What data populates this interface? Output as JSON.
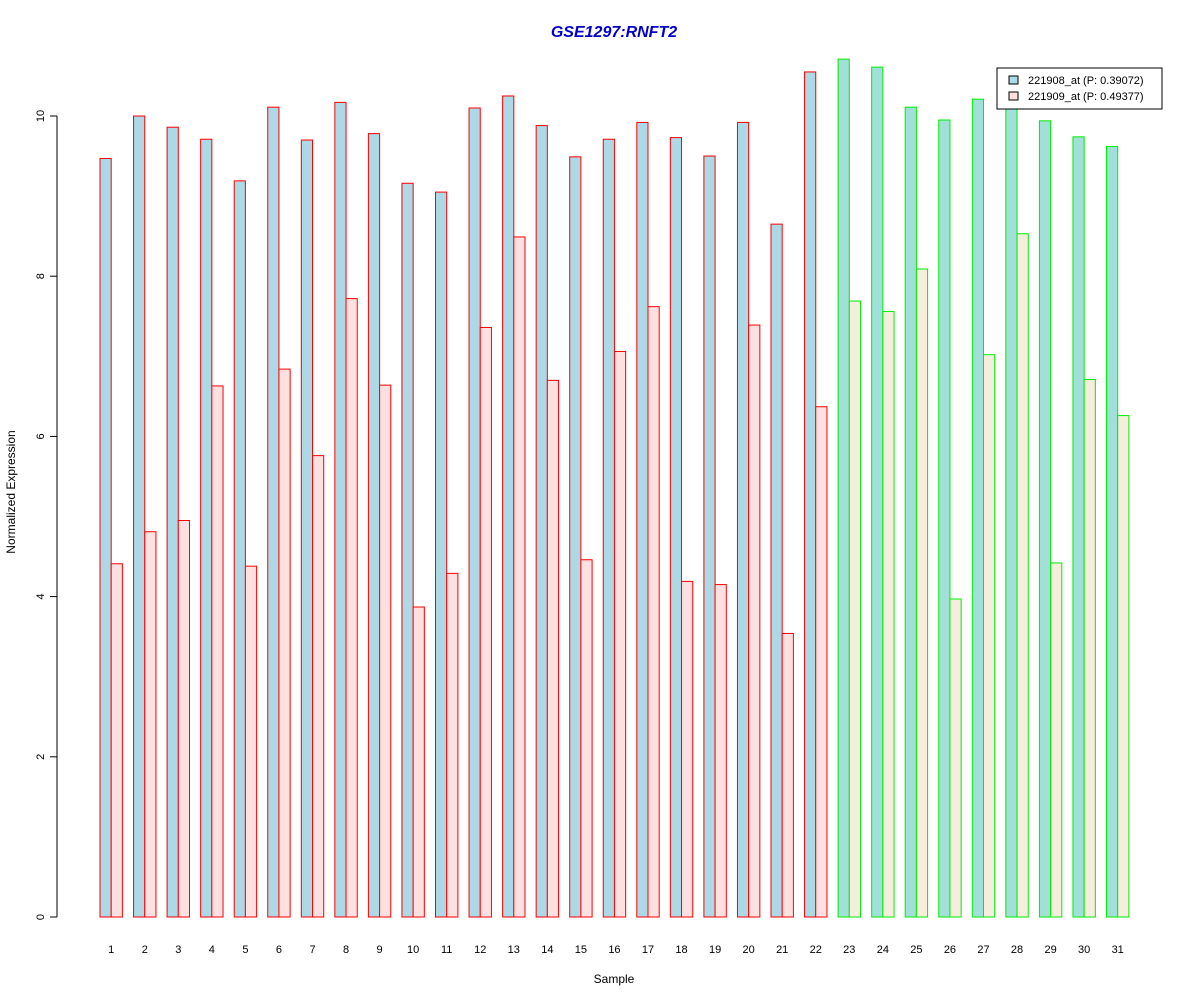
{
  "chart_data": {
    "type": "bar",
    "title": "GSE1297:RNFT2",
    "xlabel": "Sample",
    "ylabel": "Normalized Expression",
    "ylim": [
      0,
      10.8
    ],
    "yticks": [
      "0",
      "2",
      "4",
      "6",
      "8",
      "10"
    ],
    "grid": false,
    "legend_position": "top-right",
    "categories": [
      "1",
      "2",
      "3",
      "4",
      "5",
      "6",
      "7",
      "8",
      "9",
      "10",
      "11",
      "12",
      "13",
      "14",
      "15",
      "16",
      "17",
      "18",
      "19",
      "20",
      "21",
      "22",
      "23",
      "24",
      "25",
      "26",
      "27",
      "28",
      "29",
      "30",
      "31"
    ],
    "group_a_border": "#ff0000",
    "group_b_border": "#00ee00",
    "series": [
      {
        "name": "221908_at (P: 0.39072)",
        "fill_a": "#add8e6",
        "fill_b": "#a0e0d8",
        "legend_fill": "#add8e6",
        "values": [
          9.47,
          10.0,
          9.86,
          9.71,
          9.19,
          10.11,
          9.7,
          10.17,
          9.78,
          9.16,
          9.05,
          10.1,
          10.25,
          9.88,
          9.49,
          9.71,
          9.92,
          9.73,
          9.5,
          9.92,
          8.65,
          10.55,
          10.71,
          10.61,
          10.11,
          9.95,
          10.21,
          10.1,
          9.94,
          9.74,
          9.62
        ]
      },
      {
        "name": "221909_at (P: 0.49377)",
        "fill_a": "#ffe0e0",
        "fill_b": "#f5eedd",
        "legend_fill": "#ffe0e0",
        "values": [
          4.41,
          4.81,
          4.95,
          6.63,
          4.38,
          6.84,
          5.76,
          7.72,
          6.64,
          3.87,
          4.29,
          7.36,
          8.49,
          6.7,
          4.46,
          7.06,
          7.62,
          4.19,
          4.15,
          7.39,
          3.54,
          6.37,
          7.69,
          7.56,
          8.09,
          3.97,
          7.02,
          8.53,
          4.42,
          6.71,
          6.26
        ]
      }
    ],
    "group_b_start_index": 22
  }
}
